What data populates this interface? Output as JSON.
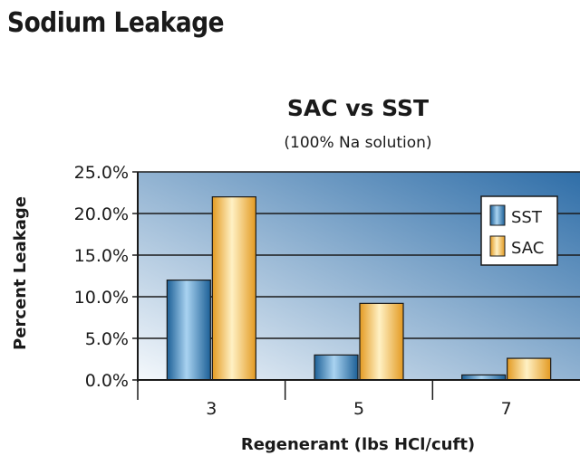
{
  "page": {
    "title": "Sodium Leakage"
  },
  "colors": {
    "sst_dark": "#1c5f96",
    "sst_light": "#a9d3f1",
    "sac_dark": "#e39a22",
    "sac_light": "#fff1c4",
    "plot_bg_light": "#f4f8fc",
    "plot_bg_dark": "#2f6ea8"
  },
  "chart_data": {
    "type": "bar",
    "title": "SAC vs SST",
    "subtitle": "(100% Na solution)",
    "xlabel": "Regenerant (lbs HCl/cuft)",
    "ylabel": "Percent Leakage",
    "categories": [
      "3",
      "5",
      "7"
    ],
    "series": [
      {
        "name": "SST",
        "values": [
          12.0,
          3.0,
          0.6
        ]
      },
      {
        "name": "SAC",
        "values": [
          22.0,
          9.2,
          2.6
        ]
      }
    ],
    "ylim": [
      0,
      25
    ],
    "yticks": [
      "0.0%",
      "5.0%",
      "10.0%",
      "15.0%",
      "20.0%",
      "25.0%"
    ],
    "grid": true,
    "legend": "top-right"
  }
}
